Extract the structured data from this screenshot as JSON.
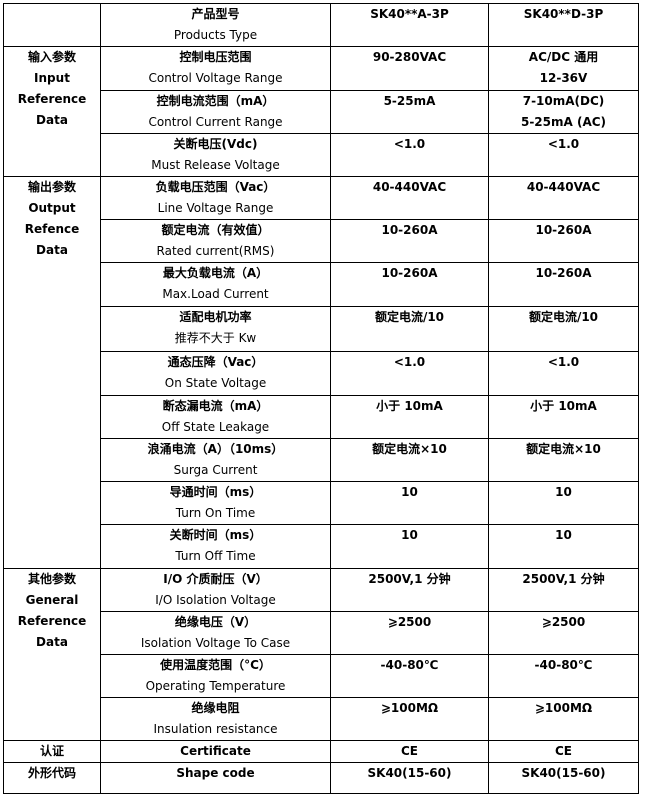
{
  "header": {
    "param": [
      "产品型号",
      "Products Type"
    ],
    "models": [
      "SK40**A-3P",
      "SK40**D-3P"
    ]
  },
  "groups": [
    {
      "label": [
        "输入参数",
        "Input",
        "Reference",
        "Data"
      ],
      "rows": [
        {
          "param": [
            "控制电压范围",
            "Control Voltage Range"
          ],
          "values": [
            [
              "90-280VAC"
            ],
            [
              "AC/DC 通用",
              "12-36V"
            ]
          ]
        },
        {
          "param": [
            "控制电流范围（mA）",
            "Control Current Range"
          ],
          "values": [
            [
              "5-25mA"
            ],
            [
              "7-10mA(DC)",
              "5-25mA (AC)"
            ]
          ]
        },
        {
          "param": [
            "关断电压(Vdc)",
            "Must Release Voltage"
          ],
          "values": [
            [
              "<1.0"
            ],
            [
              "<1.0"
            ]
          ]
        }
      ]
    },
    {
      "label": [
        "输出参数",
        "Output",
        "Refence",
        "Data"
      ],
      "rows": [
        {
          "param": [
            "负载电压范围（Vac）",
            "Line Voltage Range"
          ],
          "values": [
            [
              "40-440VAC"
            ],
            [
              "40-440VAC"
            ]
          ]
        },
        {
          "param": [
            "额定电流（有效值）",
            "Rated current(RMS)"
          ],
          "values": [
            [
              "10-260A"
            ],
            [
              "10-260A"
            ]
          ]
        },
        {
          "param": [
            "最大负载电流（A）",
            "Max.Load Current"
          ],
          "values": [
            [
              "10-260A"
            ],
            [
              "10-260A"
            ]
          ]
        },
        {
          "param": [
            "适配电机功率",
            "推荐不大于  Kw"
          ],
          "values": [
            [
              "额定电流/10"
            ],
            [
              "额定电流/10"
            ]
          ]
        },
        {
          "param": [
            "通态压降（Vac）",
            "On State Voltage"
          ],
          "values": [
            [
              "<1.0"
            ],
            [
              "<1.0"
            ]
          ]
        },
        {
          "param": [
            "断态漏电流（mA）",
            "Off State Leakage"
          ],
          "values": [
            [
              "小于 10mA"
            ],
            [
              "小于 10mA"
            ]
          ]
        },
        {
          "param": [
            "浪涌电流（A）（10ms）",
            "Surga Current"
          ],
          "values": [
            [
              "额定电流×10"
            ],
            [
              "额定电流×10"
            ]
          ]
        },
        {
          "param": [
            "导通时间（ms）",
            "Turn On Time"
          ],
          "values": [
            [
              "10"
            ],
            [
              "10"
            ]
          ]
        },
        {
          "param": [
            "关断时间（ms）",
            "Turn Off Time"
          ],
          "values": [
            [
              "10"
            ],
            [
              "10"
            ]
          ]
        }
      ]
    },
    {
      "label": [
        "其他参数",
        "General",
        "Reference",
        "Data"
      ],
      "rows": [
        {
          "param": [
            "I/O 介质耐压（V）",
            "I/O Isolation Voltage"
          ],
          "values": [
            [
              "2500V,1 分钟"
            ],
            [
              "2500V,1 分钟"
            ]
          ]
        },
        {
          "param": [
            "绝缘电压（V）",
            "Isolation Voltage To Case"
          ],
          "values": [
            [
              "⩾2500"
            ],
            [
              "⩾2500"
            ]
          ]
        },
        {
          "param": [
            "使用温度范围（°C）",
            "Operating Temperature"
          ],
          "values": [
            [
              "-40-80℃"
            ],
            [
              "-40-80℃"
            ]
          ]
        },
        {
          "param": [
            "绝缘电阻",
            "Insulation resistance"
          ],
          "values": [
            [
              "⩾100MΩ"
            ],
            [
              "⩾100MΩ"
            ]
          ]
        }
      ]
    },
    {
      "label": [
        "认证"
      ],
      "rows": [
        {
          "param": [
            "Certificate"
          ],
          "values": [
            [
              "CE"
            ],
            [
              "CE"
            ]
          ]
        }
      ]
    },
    {
      "label": [
        "外形代码"
      ],
      "rows": [
        {
          "param": [
            "Shape code"
          ],
          "values": [
            [
              "SK40(15-60)"
            ],
            [
              "SK40(15-60)"
            ]
          ]
        }
      ]
    }
  ]
}
